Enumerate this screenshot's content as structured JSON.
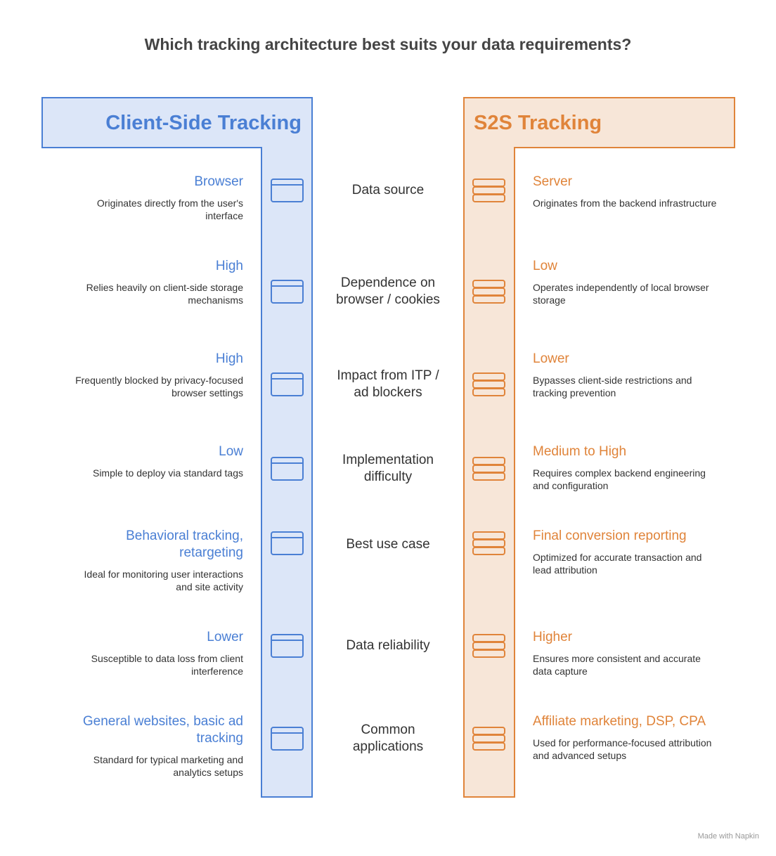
{
  "title": "Which tracking architecture best suits your data requirements?",
  "left": {
    "heading": "Client-Side Tracking"
  },
  "right": {
    "heading": "S2S Tracking"
  },
  "rows": [
    {
      "criterion": "Data source",
      "left": {
        "title": "Browser",
        "description": "Originates directly from the user's interface"
      },
      "right": {
        "title": "Server",
        "description": "Originates from the backend infrastructure"
      }
    },
    {
      "criterion": "Dependence on browser / cookies",
      "left": {
        "title": "High",
        "description": "Relies heavily on client-side storage mechanisms"
      },
      "right": {
        "title": "Low",
        "description": "Operates independently of local browser storage"
      }
    },
    {
      "criterion": "Impact from ITP / ad blockers",
      "left": {
        "title": "High",
        "description": "Frequently blocked by privacy-focused browser settings"
      },
      "right": {
        "title": "Lower",
        "description": "Bypasses client-side restrictions and tracking prevention"
      }
    },
    {
      "criterion": "Implementation difficulty",
      "left": {
        "title": "Low",
        "description": "Simple to deploy via standard tags"
      },
      "right": {
        "title": "Medium to High",
        "description": "Requires complex backend engineering and configuration"
      }
    },
    {
      "criterion": "Best use case",
      "left": {
        "title": "Behavioral tracking, retargeting",
        "description": "Ideal for monitoring user interactions and site activity"
      },
      "right": {
        "title": "Final conversion reporting",
        "description": "Optimized for accurate transaction and lead attribution"
      }
    },
    {
      "criterion": "Data reliability",
      "left": {
        "title": "Lower",
        "description": "Susceptible to data loss from client interference"
      },
      "right": {
        "title": "Higher",
        "description": "Ensures more consistent and accurate data capture"
      }
    },
    {
      "criterion": "Common applications",
      "left": {
        "title": "General websites, basic ad tracking",
        "description": "Standard for typical marketing and analytics setups"
      },
      "right": {
        "title": "Affiliate marketing, DSP, CPA",
        "description": "Used for performance-focused attribution and advanced setups"
      }
    }
  ],
  "footer": "Made with Napkin"
}
